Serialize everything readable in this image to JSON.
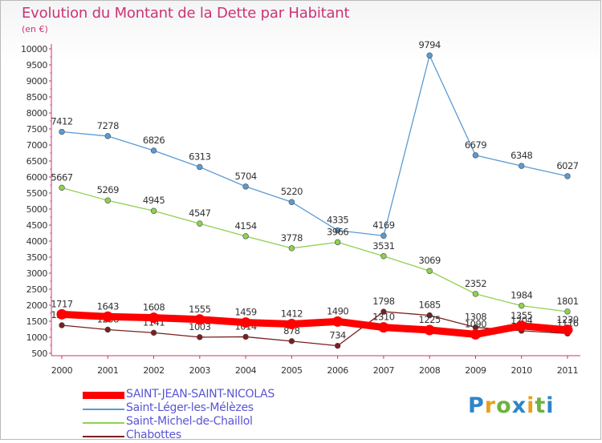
{
  "title": "Evolution du Montant de la Dette par Habitant",
  "subtitle": "(en €)",
  "logo": {
    "letters": [
      {
        "ch": "P",
        "color": "#2e86c8"
      },
      {
        "ch": "r",
        "color": "#e8a020"
      },
      {
        "ch": "o",
        "color": "#6cb33f"
      },
      {
        "ch": "x",
        "color": "#2e86c8"
      },
      {
        "ch": "i",
        "color": "#e8a020"
      },
      {
        "ch": "t",
        "color": "#6cb33f"
      },
      {
        "ch": "i",
        "color": "#2e86c8"
      }
    ]
  },
  "chart_data": {
    "type": "line",
    "title": "Evolution du Montant de la Dette par Habitant",
    "ylabel": "(en €)",
    "categories": [
      "2000",
      "2001",
      "2002",
      "2003",
      "2004",
      "2005",
      "2006",
      "2007",
      "2008",
      "2009",
      "2010",
      "2011"
    ],
    "ylim": [
      500,
      10000
    ],
    "yticks": [
      500,
      1000,
      1500,
      2000,
      2500,
      3000,
      3500,
      4000,
      4500,
      5000,
      5500,
      6000,
      6500,
      7000,
      7500,
      8000,
      8500,
      9000,
      9500,
      10000
    ],
    "grid": false,
    "legend_position": "bottom-left",
    "series": [
      {
        "name": "Saint-Léger-les-Mélèzes",
        "color": "#5a9bd4",
        "marker": true,
        "values": [
          7412,
          7278,
          6826,
          6313,
          5704,
          5220,
          4335,
          4169,
          9794,
          6679,
          6348,
          6027
        ]
      },
      {
        "name": "Saint-Michel-de-Chaillol",
        "color": "#8fd14f",
        "marker": true,
        "values": [
          5667,
          5269,
          4945,
          4547,
          4154,
          3778,
          3966,
          3531,
          3069,
          2352,
          1984,
          1801
        ]
      },
      {
        "name": "Chabottes",
        "color": "#7a1f1f",
        "marker": true,
        "values": [
          1375,
          1238,
          1141,
          1003,
          1014,
          878,
          734,
          1798,
          1685,
          1308,
          1204,
          1116
        ]
      },
      {
        "name": "SAINT-JEAN-SAINT-NICOLAS",
        "color": "#ff0000",
        "marker": true,
        "thick": true,
        "values": [
          1717,
          1643,
          1608,
          1555,
          1459,
          1412,
          1490,
          1310,
          1225,
          1090,
          1355,
          1230
        ]
      }
    ],
    "legend_order": [
      "SAINT-JEAN-SAINT-NICOLAS",
      "Saint-Léger-les-Mélèzes",
      "Saint-Michel-de-Chaillol",
      "Chabottes"
    ]
  }
}
